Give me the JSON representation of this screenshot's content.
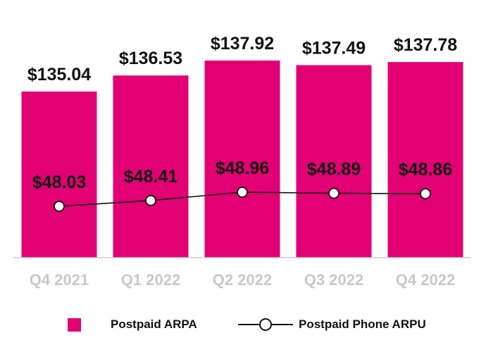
{
  "chart_data": {
    "type": "bar",
    "title": "",
    "xlabel": "",
    "ylabel": "",
    "categories": [
      "Q4 2021",
      "Q1 2022",
      "Q2 2022",
      "Q3 2022",
      "Q4 2022"
    ],
    "series": [
      {
        "name": "Postpaid ARPA",
        "type": "bar",
        "values": [
          135.04,
          136.53,
          137.92,
          137.49,
          137.78
        ],
        "labels": [
          "$135.04",
          "$136.53",
          "$137.92",
          "$137.49",
          "$137.78"
        ],
        "color": "#e20074"
      },
      {
        "name": "Postpaid Phone ARPU",
        "type": "line",
        "values": [
          48.03,
          48.41,
          48.96,
          48.89,
          48.86
        ],
        "labels": [
          "$48.03",
          "$48.41",
          "$48.96",
          "$48.89",
          "$48.86"
        ],
        "color": "#111111"
      }
    ],
    "legend": {
      "position": "bottom",
      "items": [
        {
          "label": "Postpaid ARPA",
          "marker": "square",
          "color": "#e20074"
        },
        {
          "label": "Postpaid Phone ARPU",
          "marker": "line-circle",
          "color": "#111111"
        }
      ]
    },
    "colors": {
      "bar": "#e20074",
      "line": "#111111",
      "tick": "#c8c8c8",
      "axis": "#cccccc"
    }
  }
}
